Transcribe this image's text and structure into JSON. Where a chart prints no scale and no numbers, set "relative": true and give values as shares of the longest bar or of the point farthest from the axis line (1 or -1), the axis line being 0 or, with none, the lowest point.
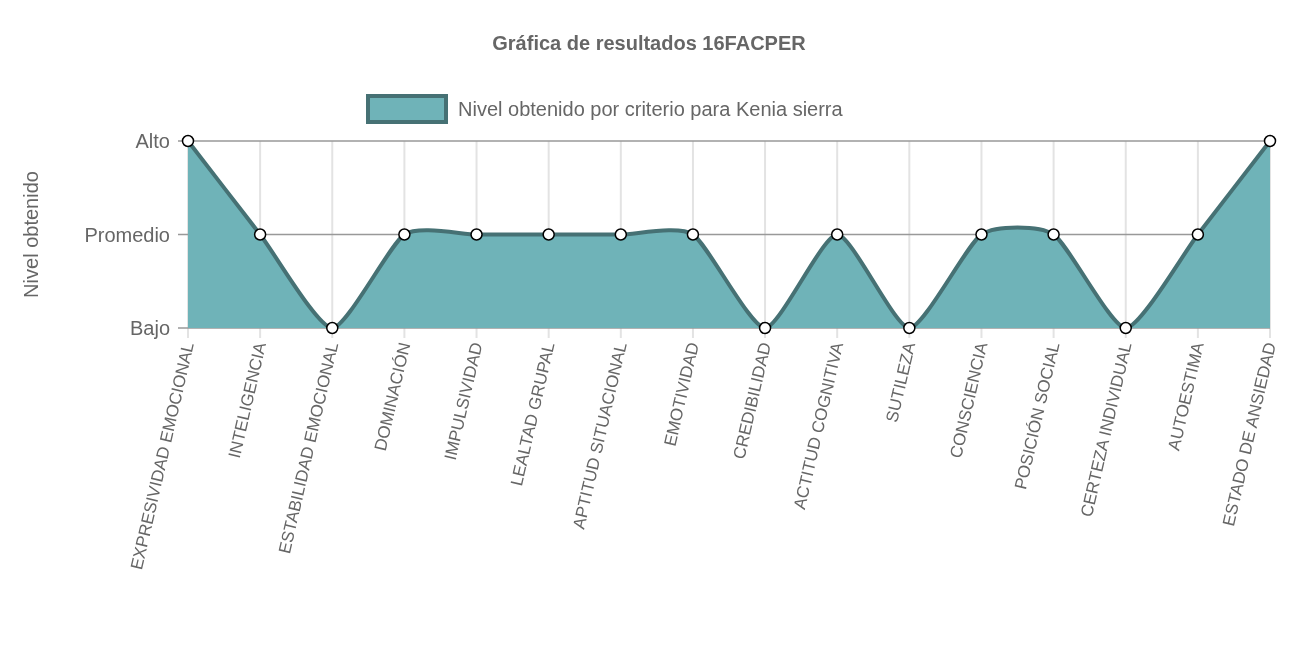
{
  "chart_data": {
    "type": "area",
    "title": "Gráfica de resultados 16FACPER",
    "ylabel": "Nivel obtenido",
    "categories": [
      "EXPRESIVIDAD EMOCIONAL",
      "INTELIGENCIA",
      "ESTABILIDAD EMOCIONAL",
      "DOMINACIÓN",
      "IMPULSIVIDAD",
      "LEALTAD GRUPAL",
      "APTITUD SITUACIONAL",
      "EMOTIVIDAD",
      "CREDIBILIDAD",
      "ACTITUD COGNITIVA",
      "SUTILEZA",
      "CONSCIENCIA",
      "POSICIÓN SOCIAL",
      "CERTEZA INDIVIDUAL",
      "AUTOESTIMA",
      "ESTADO DE ANSIEDAD"
    ],
    "relative": true,
    "annotations": [
      "Bajo",
      "Promedio",
      "Alto"
    ],
    "ref_lines": [
      {
        "axis": "y",
        "value": 0.5,
        "color": "#999999"
      }
    ],
    "series": [
      {
        "name": "Nivel obtenido por criterio para Kenia sierra",
        "color": "#6fb3b8",
        "values": [
          1,
          0.5,
          0,
          0.5,
          0.5,
          0.5,
          0.5,
          0.5,
          0,
          0.5,
          0,
          0.5,
          0.5,
          0,
          0.5,
          1
        ]
      }
    ],
    "grid": true,
    "legend": "top",
    "marker": "circle"
  }
}
